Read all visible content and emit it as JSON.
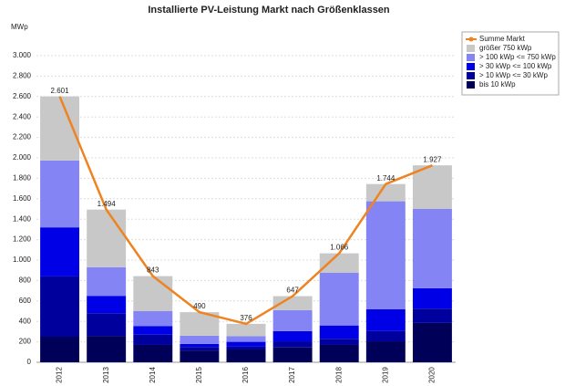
{
  "chart_data": {
    "type": "bar",
    "title": "Installierte PV-Leistung Markt nach Größenklassen",
    "y_label": "MWp",
    "categories": [
      "2012",
      "2013",
      "2014",
      "2015",
      "2016",
      "2017",
      "2018",
      "2019",
      "2020"
    ],
    "series": [
      {
        "name": "Summe Markt",
        "type": "line",
        "color": "#ee8322",
        "values": [
          2601,
          1494,
          843,
          490,
          376,
          647,
          1066,
          1744,
          1927
        ],
        "value_labels": [
          "2.601",
          "1.494",
          "843",
          "490",
          "376",
          "647",
          "1.066",
          "1.744",
          "1.927"
        ]
      },
      {
        "name": "größer 750 kWp",
        "color": "#c8c8c8",
        "values": [
          626,
          564,
          343,
          230,
          121,
          137,
          191,
          169,
          427
        ]
      },
      {
        "name": "> 100 kWp <= 750 kWp",
        "color": "#8484f4",
        "values": [
          655,
          280,
          145,
          80,
          55,
          205,
          515,
          1055,
          775
        ]
      },
      {
        "name": "> 30 kWp <= 100 kWp",
        "color": "#0000e6",
        "values": [
          480,
          170,
          85,
          30,
          45,
          100,
          130,
          215,
          200
        ]
      },
      {
        "name": "> 10 kWp <= 30 kWp",
        "color": "#00009c",
        "values": [
          590,
          222,
          100,
          35,
          30,
          60,
          60,
          100,
          140
        ]
      },
      {
        "name": "bis 10 kWp",
        "color": "#000058",
        "values": [
          250,
          258,
          170,
          115,
          125,
          145,
          170,
          205,
          385
        ]
      }
    ],
    "ylim": [
      0,
      3000
    ],
    "yticks": [
      0,
      200,
      400,
      600,
      800,
      {
        "value": 1000,
        "label": "1.000"
      },
      {
        "value": 1200,
        "label": "1.200"
      },
      {
        "value": 1400,
        "label": "1.400"
      },
      {
        "value": 1600,
        "label": "1.600"
      },
      {
        "value": 1800,
        "label": "1.800"
      },
      {
        "value": 2000,
        "label": "2.000"
      },
      {
        "value": 2200,
        "label": "2.200"
      },
      {
        "value": 2400,
        "label": "2.400"
      },
      {
        "value": 2600,
        "label": "2.600"
      },
      {
        "value": 2800,
        "label": "2.800"
      },
      {
        "value": 3000,
        "label": "3.000"
      }
    ],
    "grid": true,
    "legend": "right"
  }
}
